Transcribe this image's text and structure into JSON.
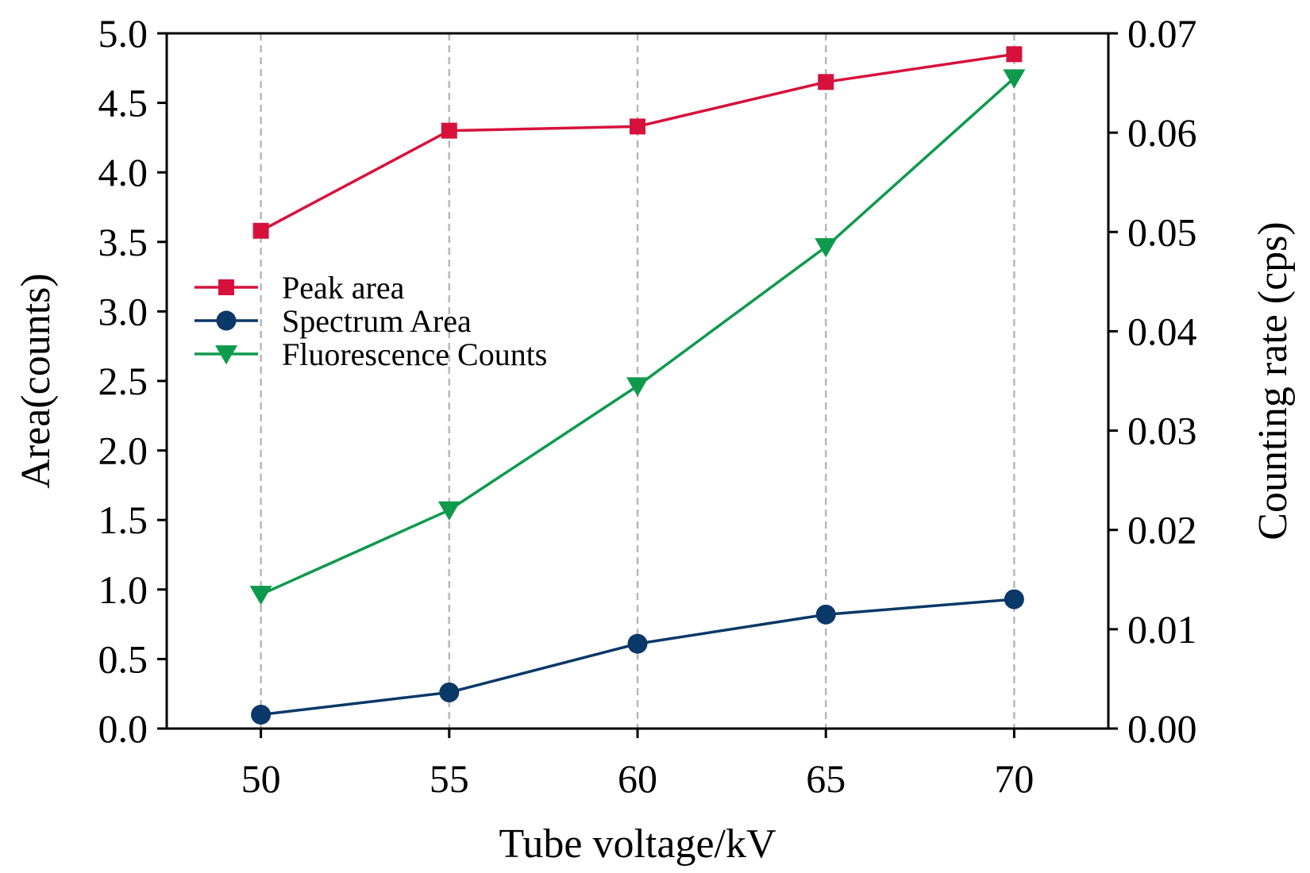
{
  "chart_data": {
    "type": "line",
    "title": "",
    "xlabel": "Tube voltage/kV",
    "ylabel_left": "Area(counts)",
    "ylabel_right": "Counting rate (cps)",
    "x": [
      50,
      55,
      60,
      65,
      70
    ],
    "xlim": [
      47.5,
      72.5
    ],
    "xticks": [
      "50",
      "55",
      "60",
      "65",
      "70"
    ],
    "ylim_left": [
      0,
      5.0
    ],
    "yticks_left": [
      "0.0",
      "0.5",
      "1.0",
      "1.5",
      "2.0",
      "2.5",
      "3.0",
      "3.5",
      "4.0",
      "4.5",
      "5.0"
    ],
    "ylim_right": [
      0,
      0.07
    ],
    "yticks_right": [
      "0.00",
      "0.01",
      "0.02",
      "0.03",
      "0.04",
      "0.05",
      "0.06",
      "0.07"
    ],
    "grid": "vertical dashed at x ticks",
    "legend_position": "center-left",
    "series": [
      {
        "name": "Peak area",
        "axis": "left",
        "marker": "square",
        "color": "#d6123c",
        "values": [
          3.58,
          4.3,
          4.33,
          4.65,
          4.85
        ]
      },
      {
        "name": "Spectrum Area",
        "axis": "left",
        "marker": "circle",
        "color": "#0a3868",
        "values": [
          0.1,
          0.26,
          0.61,
          0.82,
          0.93
        ]
      },
      {
        "name": "Fluorescence Counts",
        "axis": "right",
        "marker": "triangle-down",
        "color": "#0e9a4c",
        "values": [
          0.0135,
          0.022,
          0.0345,
          0.0485,
          0.0655
        ]
      }
    ]
  }
}
